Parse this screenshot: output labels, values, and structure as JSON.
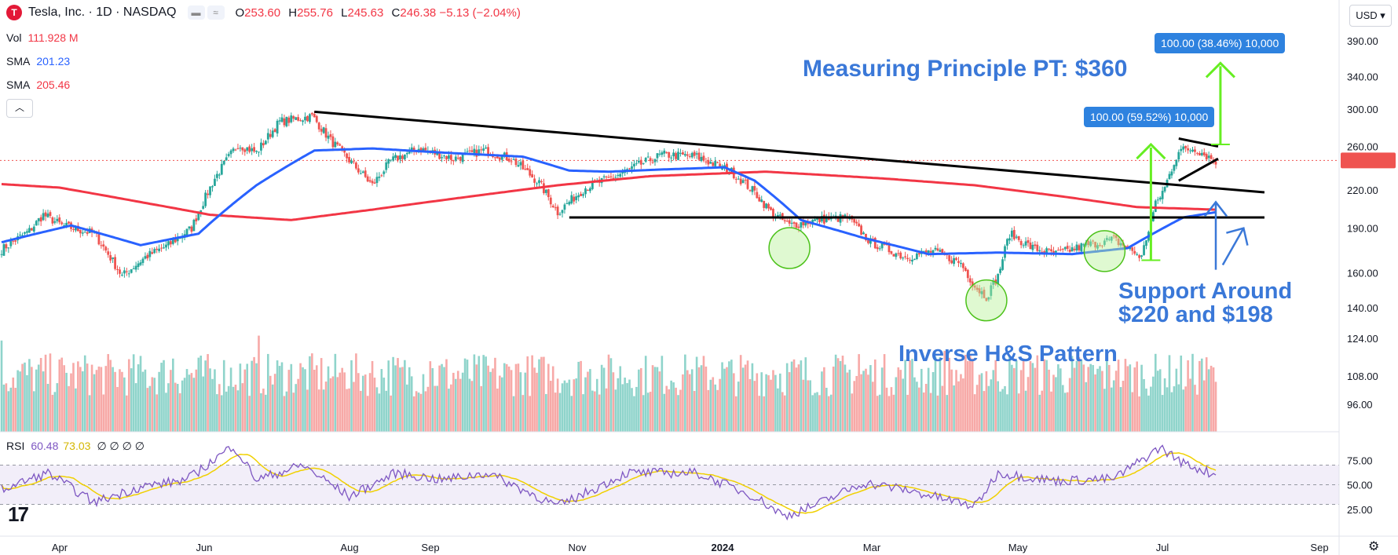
{
  "header": {
    "logo_letter": "T",
    "title": "Tesla, Inc. · 1D · NASDAQ",
    "ohlc": [
      {
        "label": "O",
        "value": "253.60"
      },
      {
        "label": "H",
        "value": "255.76"
      },
      {
        "label": "L",
        "value": "245.63"
      },
      {
        "label": "C",
        "value": "246.38 −5.13 (−2.04%)"
      }
    ]
  },
  "indicators": {
    "vol": {
      "label": "Vol",
      "value": "111.928 M",
      "color": "#f23645"
    },
    "sma1": {
      "label": "SMA",
      "value": "201.23",
      "color": "#2962ff"
    },
    "sma2": {
      "label": "SMA",
      "value": "205.46",
      "color": "#f23645"
    }
  },
  "currency": "USD",
  "rsi_header": {
    "label": "RSI",
    "value1": "60.48",
    "value2": "73.03",
    "extra": "∅ ∅ ∅ ∅",
    "color1": "#7e57c2",
    "color2": "#d4b600"
  },
  "annotations": {
    "measuring": "Measuring Principle PT: $360",
    "support": "Support Around\n$220 and $198",
    "inverse": "Inverse H&S Pattern",
    "box1": "100.00 (38.46%) 10,000",
    "box2": "100.00 (59.52%) 10,000"
  },
  "colors": {
    "up": "#26a69a",
    "down": "#ef5350",
    "sma_blue": "#2962ff",
    "sma_red": "#f23645",
    "rsi_line": "#7e57c2",
    "rsi_ma": "#f0d000",
    "green_arrow": "#66ee22",
    "blue_ann": "#3a78d8"
  },
  "chart_data": {
    "type": "candlestick",
    "price_axis_ticks": [
      390,
      340,
      300,
      260,
      220,
      190,
      160,
      140
    ],
    "price_axis_labels": [
      "390.00",
      "340.00",
      "300.00",
      "260.00",
      "220.00",
      "190.00",
      "160.00",
      "140.00"
    ],
    "volume_axis_labels": [
      "124.00",
      "108.00",
      "96.00"
    ],
    "rsi_axis_labels": [
      "75.00",
      "50.00",
      "25.00"
    ],
    "x_labels": [
      "Apr",
      "Jun",
      "Aug",
      "Sep",
      "Nov",
      "2024",
      "Mar",
      "May",
      "Jul",
      "Sep"
    ],
    "last_price": 246.38,
    "close_anchors": [
      [
        0,
        175
      ],
      [
        12,
        188
      ],
      [
        18,
        200
      ],
      [
        26,
        192
      ],
      [
        40,
        186
      ],
      [
        52,
        158
      ],
      [
        62,
        170
      ],
      [
        72,
        178
      ],
      [
        82,
        190
      ],
      [
        92,
        230
      ],
      [
        102,
        262
      ],
      [
        110,
        254
      ],
      [
        120,
        286
      ],
      [
        134,
        292
      ],
      [
        142,
        266
      ],
      [
        152,
        242
      ],
      [
        160,
        224
      ],
      [
        168,
        246
      ],
      [
        180,
        258
      ],
      [
        195,
        248
      ],
      [
        208,
        256
      ],
      [
        220,
        248
      ],
      [
        232,
        226
      ],
      [
        240,
        202
      ],
      [
        252,
        222
      ],
      [
        265,
        232
      ],
      [
        285,
        252
      ],
      [
        300,
        250
      ],
      [
        315,
        236
      ],
      [
        325,
        218
      ],
      [
        332,
        202
      ],
      [
        340,
        192
      ],
      [
        352,
        196
      ],
      [
        365,
        198
      ],
      [
        375,
        180
      ],
      [
        390,
        170
      ],
      [
        402,
        174
      ],
      [
        414,
        166
      ],
      [
        420,
        152
      ],
      [
        425,
        146
      ],
      [
        430,
        158
      ],
      [
        435,
        186
      ],
      [
        445,
        176
      ],
      [
        455,
        172
      ],
      [
        468,
        178
      ],
      [
        480,
        182
      ],
      [
        492,
        170
      ],
      [
        498,
        208
      ],
      [
        502,
        222
      ],
      [
        508,
        256
      ],
      [
        515,
        258
      ],
      [
        520,
        251
      ],
      [
        524,
        246
      ]
    ],
    "sma50_anchors": [
      [
        0,
        180
      ],
      [
        30,
        192
      ],
      [
        60,
        178
      ],
      [
        85,
        186
      ],
      [
        110,
        224
      ],
      [
        135,
        256
      ],
      [
        160,
        258
      ],
      [
        190,
        254
      ],
      [
        225,
        250
      ],
      [
        245,
        237
      ],
      [
        262,
        236
      ],
      [
        285,
        238
      ],
      [
        312,
        240
      ],
      [
        325,
        228
      ],
      [
        345,
        196
      ],
      [
        372,
        183
      ],
      [
        400,
        172
      ],
      [
        430,
        173
      ],
      [
        462,
        172
      ],
      [
        486,
        176
      ],
      [
        510,
        198
      ],
      [
        524,
        202
      ]
    ],
    "sma200_anchors": [
      [
        0,
        225
      ],
      [
        25,
        222
      ],
      [
        60,
        210
      ],
      [
        90,
        200
      ],
      [
        125,
        196
      ],
      [
        160,
        204
      ],
      [
        200,
        214
      ],
      [
        240,
        224
      ],
      [
        280,
        232
      ],
      [
        330,
        236
      ],
      [
        380,
        230
      ],
      [
        420,
        224
      ],
      [
        460,
        214
      ],
      [
        490,
        206
      ],
      [
        524,
        204
      ]
    ],
    "rsi_anchors": [
      [
        0,
        45
      ],
      [
        20,
        62
      ],
      [
        40,
        32
      ],
      [
        60,
        48
      ],
      [
        80,
        55
      ],
      [
        100,
        90
      ],
      [
        110,
        55
      ],
      [
        130,
        70
      ],
      [
        150,
        38
      ],
      [
        170,
        62
      ],
      [
        190,
        55
      ],
      [
        210,
        62
      ],
      [
        240,
        28
      ],
      [
        270,
        62
      ],
      [
        300,
        62
      ],
      [
        325,
        38
      ],
      [
        338,
        18
      ],
      [
        350,
        28
      ],
      [
        372,
        52
      ],
      [
        390,
        45
      ],
      [
        420,
        28
      ],
      [
        430,
        62
      ],
      [
        455,
        54
      ],
      [
        480,
        56
      ],
      [
        500,
        88
      ],
      [
        510,
        72
      ],
      [
        524,
        60
      ]
    ],
    "highlight_index": 312,
    "green_circles": [
      [
        340,
        176
      ],
      [
        425,
        144
      ],
      [
        476,
        174
      ]
    ],
    "trendlines": [
      {
        "from": [
          135,
          297
        ],
        "to": [
          545,
          218
        ]
      },
      {
        "from": [
          245,
          198
        ],
        "to": [
          545,
          198
        ]
      },
      {
        "from": [
          508,
          268
        ],
        "to": [
          525,
          260
        ]
      },
      {
        "from": [
          508,
          228
        ],
        "to": [
          525,
          248
        ]
      }
    ],
    "arrows": [
      {
        "x": 496,
        "from": 168,
        "to": 262
      },
      {
        "x": 526,
        "from": 262,
        "to": 358
      }
    ],
    "support_arrows": [
      {
        "from": [
          524,
          162
        ],
        "to": [
          524,
          210
        ]
      },
      {
        "from": [
          527,
          165
        ],
        "to": [
          536,
          190
        ]
      }
    ],
    "price_range": [
      130,
      400
    ],
    "rsi_levels": [
      70,
      50,
      30
    ],
    "bars": 525
  }
}
